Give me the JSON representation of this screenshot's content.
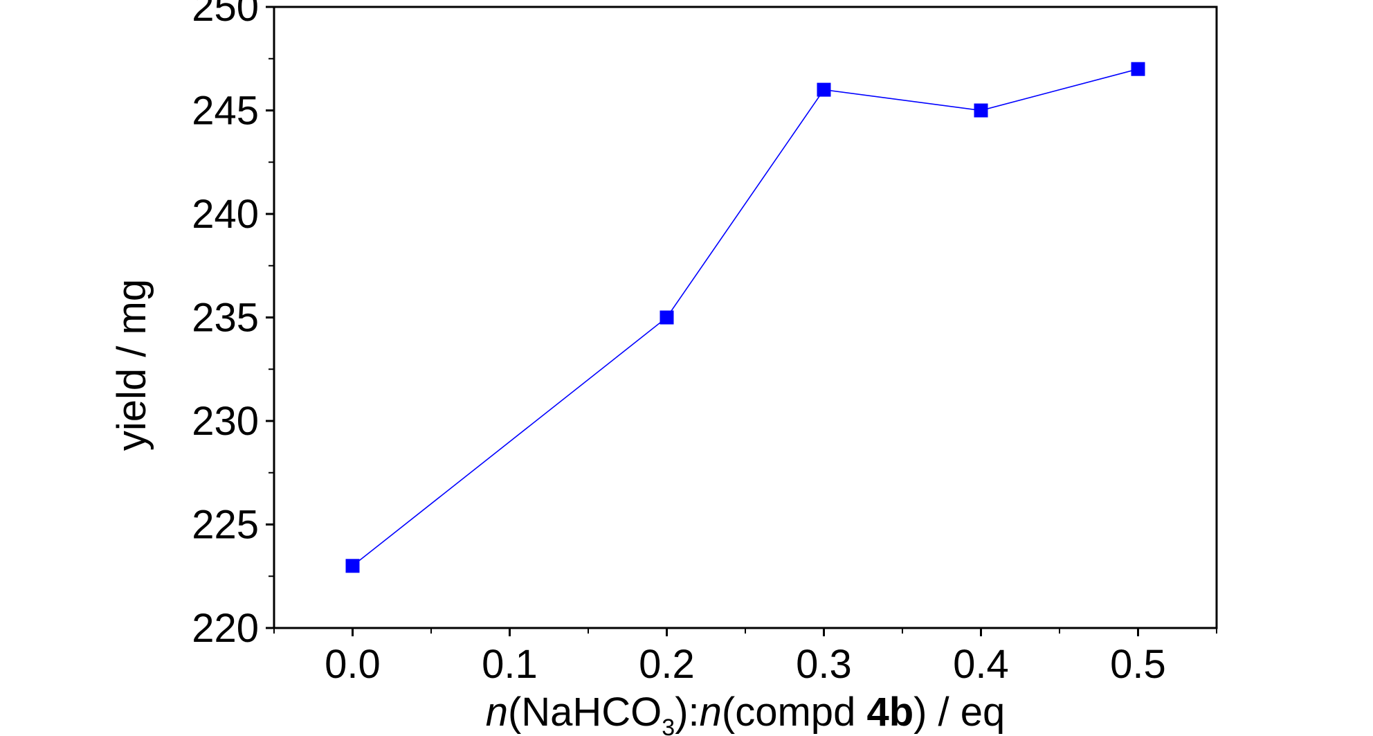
{
  "chart_data": {
    "type": "line",
    "x": [
      0.0,
      0.2,
      0.3,
      0.4,
      0.5
    ],
    "series": [
      {
        "values": [
          223,
          235,
          246,
          245,
          247
        ],
        "color": "#0000ff",
        "marker": "square"
      }
    ],
    "xlim": [
      -0.05,
      0.55
    ],
    "ylim": [
      220,
      250
    ],
    "xticks": [
      0.0,
      0.1,
      0.2,
      0.3,
      0.4,
      0.5
    ],
    "xtick_labels": [
      "0.0",
      "0.1",
      "0.2",
      "0.3",
      "0.4",
      "0.5"
    ],
    "yticks": [
      220,
      225,
      230,
      235,
      240,
      245,
      250
    ],
    "ytick_labels": [
      "220",
      "225",
      "230",
      "235",
      "240",
      "245",
      "250"
    ],
    "xlabel": {
      "n1": "n",
      "p1": "(NaHCO",
      "sub": "3",
      "p2": "):",
      "n2": "n",
      "p3": "(compd ",
      "bold": "4b",
      "p4": ") / eq"
    },
    "ylabel": "yield / mg",
    "grid": false
  }
}
